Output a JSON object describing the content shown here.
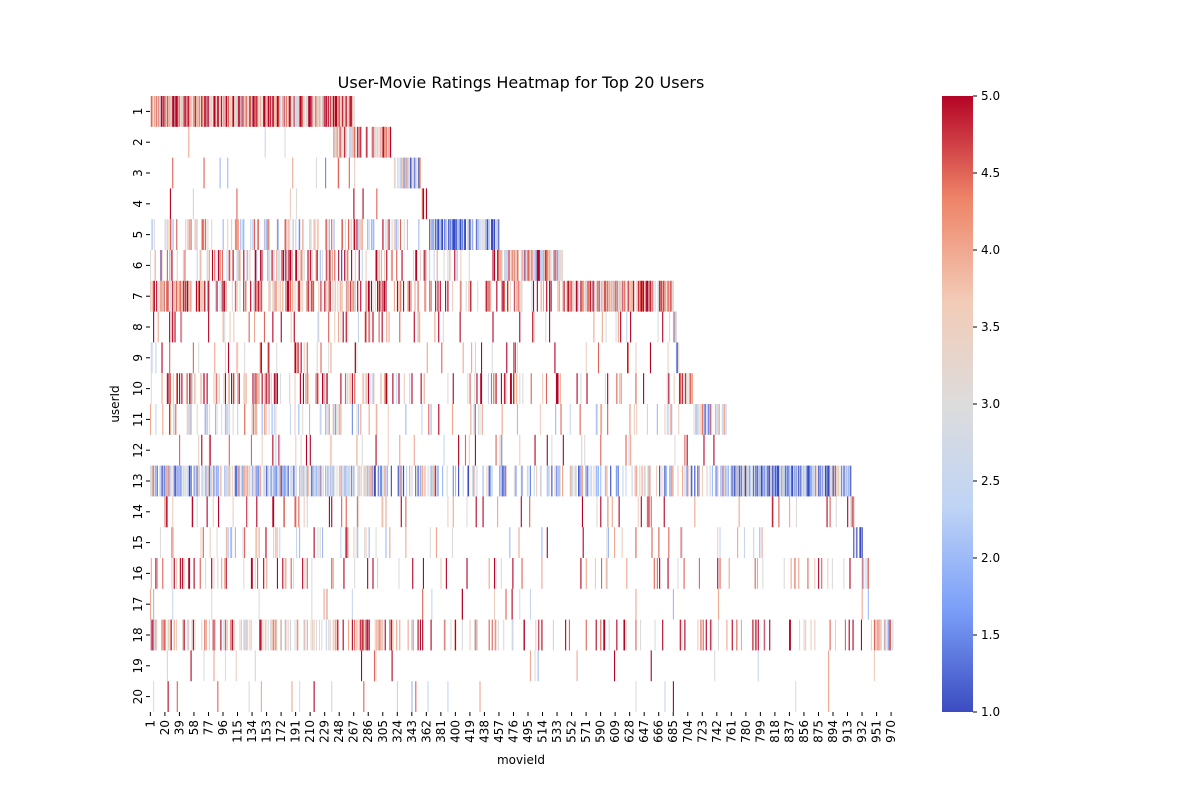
{
  "chart_data": {
    "type": "heatmap",
    "title": "User-Movie Ratings Heatmap for Top 20 Users",
    "xlabel": "movieId",
    "ylabel": "userId",
    "colormap": "coolwarm",
    "colormap_stops": [
      "#3b4cc0",
      "#7b9ff9",
      "#c0d4f5",
      "#dddcdc",
      "#f2cbb7",
      "#ee8468",
      "#b40426"
    ],
    "value_range": [
      1.0,
      5.0
    ],
    "missing_color": "#ffffff",
    "x_ticks": [
      "1",
      "20",
      "39",
      "58",
      "77",
      "96",
      "115",
      "134",
      "153",
      "172",
      "191",
      "210",
      "229",
      "248",
      "267",
      "286",
      "305",
      "324",
      "343",
      "362",
      "381",
      "400",
      "419",
      "438",
      "457",
      "476",
      "495",
      "514",
      "533",
      "552",
      "571",
      "590",
      "609",
      "628",
      "647",
      "666",
      "685",
      "704",
      "723",
      "742",
      "761",
      "780",
      "799",
      "818",
      "837",
      "856",
      "875",
      "894",
      "913",
      "932",
      "951",
      "970"
    ],
    "y_ticks": [
      "1",
      "2",
      "3",
      "4",
      "5",
      "6",
      "7",
      "8",
      "9",
      "10",
      "11",
      "12",
      "13",
      "14",
      "15",
      "16",
      "17",
      "18",
      "19",
      "20"
    ],
    "colorbar_ticks": [
      "1.0",
      "1.5",
      "2.0",
      "2.5",
      "3.0",
      "3.5",
      "4.0",
      "4.5",
      "5.0"
    ],
    "n_movies": 972,
    "user_dense_ranges": [
      {
        "user": "1",
        "from": 1,
        "to": 270,
        "density": 0.85,
        "mean": 4.2
      },
      {
        "user": "2",
        "from": 240,
        "to": 315,
        "density": 0.6,
        "mean": 3.8
      },
      {
        "user": "3",
        "from": 320,
        "to": 355,
        "density": 0.75,
        "mean": 2.6
      },
      {
        "user": "4",
        "from": 355,
        "to": 362,
        "density": 0.7,
        "mean": 4.5
      },
      {
        "user": "5",
        "from": 365,
        "to": 457,
        "density": 0.8,
        "mean": 1.9
      },
      {
        "user": "6",
        "from": 457,
        "to": 540,
        "density": 0.85,
        "mean": 3.6
      },
      {
        "user": "7",
        "from": 540,
        "to": 685,
        "density": 0.8,
        "mean": 4.0
      },
      {
        "user": "8",
        "from": 685,
        "to": 690,
        "density": 0.8,
        "mean": 3.0
      },
      {
        "user": "9",
        "from": 689,
        "to": 692,
        "density": 0.8,
        "mean": 2.0
      },
      {
        "user": "10",
        "from": 692,
        "to": 710,
        "density": 0.85,
        "mean": 4.1
      },
      {
        "user": "11",
        "from": 710,
        "to": 755,
        "density": 0.7,
        "mean": 3.0
      },
      {
        "user": "12",
        "from": 755,
        "to": 760,
        "density": 0.3,
        "mean": 3.5
      },
      {
        "user": "13",
        "from": 755,
        "to": 917,
        "density": 0.9,
        "mean": 2.0
      },
      {
        "user": "14",
        "from": 917,
        "to": 921,
        "density": 0.8,
        "mean": 4.8
      },
      {
        "user": "15",
        "from": 921,
        "to": 932,
        "density": 0.6,
        "mean": 1.6
      },
      {
        "user": "16",
        "from": 932,
        "to": 940,
        "density": 0.6,
        "mean": 3.0
      },
      {
        "user": "17",
        "from": 0,
        "to": 0,
        "density": 0,
        "mean": 3.0
      },
      {
        "user": "18",
        "from": 950,
        "to": 972,
        "density": 0.7,
        "mean": 3.0
      },
      {
        "user": "19",
        "from": 0,
        "to": 0,
        "density": 0,
        "mean": 3.0
      },
      {
        "user": "20",
        "from": 0,
        "to": 0,
        "density": 0,
        "mean": 3.0
      }
    ],
    "user_scatter": [
      {
        "user": "1",
        "density": 0.0,
        "mean": 3.8
      },
      {
        "user": "2",
        "density": 0.03,
        "mean": 3.8
      },
      {
        "user": "3",
        "density": 0.02,
        "mean": 3.2
      },
      {
        "user": "4",
        "density": 0.02,
        "mean": 4.0
      },
      {
        "user": "5",
        "density": 0.22,
        "mean": 3.3
      },
      {
        "user": "6",
        "density": 0.22,
        "mean": 3.8
      },
      {
        "user": "7",
        "density": 0.35,
        "mean": 4.3
      },
      {
        "user": "8",
        "density": 0.1,
        "mean": 4.2
      },
      {
        "user": "9",
        "density": 0.05,
        "mean": 4.0
      },
      {
        "user": "10",
        "density": 0.22,
        "mean": 4.2
      },
      {
        "user": "11",
        "density": 0.15,
        "mean": 3.2
      },
      {
        "user": "12",
        "density": 0.06,
        "mean": 4.0
      },
      {
        "user": "13",
        "density": 0.5,
        "mean": 2.6
      },
      {
        "user": "14",
        "density": 0.07,
        "mean": 4.3
      },
      {
        "user": "15",
        "density": 0.08,
        "mean": 3.3
      },
      {
        "user": "16",
        "density": 0.12,
        "mean": 4.3
      },
      {
        "user": "17",
        "density": 0.03,
        "mean": 3.6
      },
      {
        "user": "18",
        "density": 0.25,
        "mean": 4.0
      },
      {
        "user": "19",
        "density": 0.02,
        "mean": 3.6
      },
      {
        "user": "20",
        "density": 0.02,
        "mean": 3.6
      }
    ]
  }
}
